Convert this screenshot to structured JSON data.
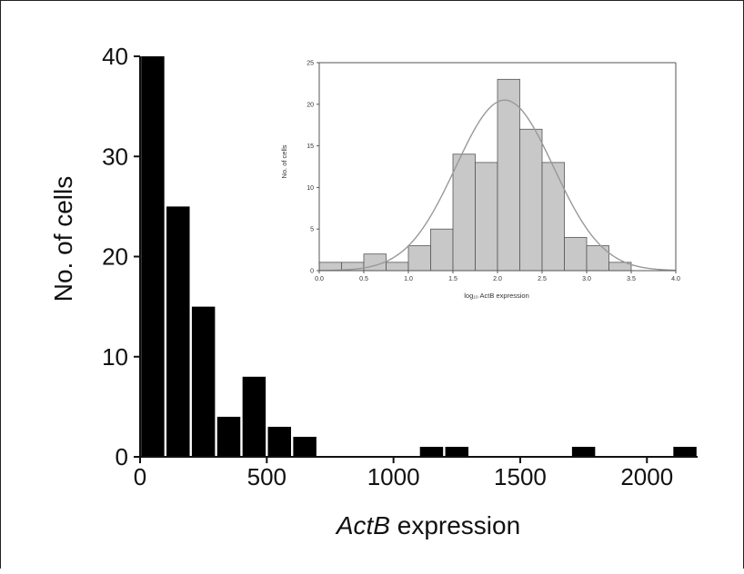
{
  "chart_data": [
    {
      "type": "bar",
      "xlabel_italic": "ActB",
      "xlabel_rest": " expression",
      "ylabel": "No. of cells",
      "xlim": [
        0,
        2200
      ],
      "ylim": [
        0,
        40
      ],
      "xticks": [
        "0",
        "500",
        "1000",
        "1500",
        "2000"
      ],
      "xtick_values": [
        0,
        500,
        1000,
        1500,
        2000
      ],
      "yticks": [
        "0",
        "10",
        "20",
        "30",
        "40"
      ],
      "ytick_values": [
        0,
        10,
        20,
        30,
        40
      ],
      "bin_width": 100,
      "bins": [
        {
          "start": 0,
          "count": 40
        },
        {
          "start": 100,
          "count": 25
        },
        {
          "start": 200,
          "count": 15
        },
        {
          "start": 300,
          "count": 4
        },
        {
          "start": 400,
          "count": 8
        },
        {
          "start": 500,
          "count": 3
        },
        {
          "start": 600,
          "count": 2
        },
        {
          "start": 1100,
          "count": 1
        },
        {
          "start": 1200,
          "count": 1
        },
        {
          "start": 1700,
          "count": 1
        },
        {
          "start": 2100,
          "count": 1
        }
      ],
      "bar_color": "#000000"
    },
    {
      "type": "bar",
      "inset": true,
      "xlabel": "log₁₀ ActB expression",
      "ylabel": "No. of cells",
      "xlim": [
        0,
        4.0
      ],
      "ylim": [
        0,
        25
      ],
      "xticks": [
        "0.0",
        "0.5",
        "1.0",
        "1.5",
        "2.0",
        "2.5",
        "3.0",
        "3.5",
        "4.0"
      ],
      "xtick_values": [
        0,
        0.5,
        1.0,
        1.5,
        2.0,
        2.5,
        3.0,
        3.5,
        4.0
      ],
      "yticks": [
        "0",
        "5",
        "10",
        "15",
        "20",
        "25"
      ],
      "ytick_values": [
        0,
        5,
        10,
        15,
        20,
        25
      ],
      "bin_width": 0.25,
      "bins": [
        {
          "start": 0.0,
          "count": 1
        },
        {
          "start": 0.25,
          "count": 1
        },
        {
          "start": 0.5,
          "count": 2
        },
        {
          "start": 0.75,
          "count": 1
        },
        {
          "start": 1.0,
          "count": 3
        },
        {
          "start": 1.25,
          "count": 5
        },
        {
          "start": 1.5,
          "count": 14
        },
        {
          "start": 1.75,
          "count": 13
        },
        {
          "start": 2.0,
          "count": 23
        },
        {
          "start": 2.25,
          "count": 17
        },
        {
          "start": 2.5,
          "count": 13
        },
        {
          "start": 2.75,
          "count": 4
        },
        {
          "start": 3.0,
          "count": 3
        },
        {
          "start": 3.25,
          "count": 1
        }
      ],
      "fit_curve": {
        "type": "gaussian",
        "mean": 2.08,
        "sd": 0.55,
        "peak": 20.5
      },
      "bar_color": "#c8c8c8",
      "curve_color": "#999999"
    }
  ]
}
